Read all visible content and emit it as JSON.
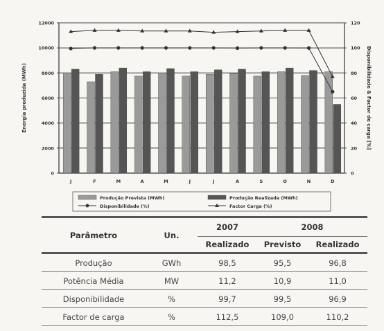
{
  "chart_data": {
    "type": "bar",
    "categories": [
      "J",
      "F",
      "M",
      "A",
      "M",
      "J",
      "J",
      "A",
      "S",
      "O",
      "N",
      "D"
    ],
    "series": [
      {
        "name": "Produção Prevista (MWh)",
        "kind": "bar",
        "axis": "left",
        "color": "#9a9a9a",
        "values": [
          8000,
          7300,
          8100,
          7750,
          8000,
          7750,
          7900,
          7950,
          7750,
          8100,
          7800,
          8100
        ]
      },
      {
        "name": "Produção Realizada (MWh)",
        "kind": "bar",
        "axis": "left",
        "color": "#555555",
        "values": [
          8300,
          7900,
          8400,
          8100,
          8350,
          8100,
          8250,
          8300,
          8100,
          8400,
          8200,
          5500
        ]
      },
      {
        "name": "Disponibilidade (%)",
        "kind": "line",
        "axis": "right",
        "marker": "circle",
        "values": [
          99.5,
          100,
          100,
          100,
          100,
          100,
          100,
          99.8,
          100,
          100,
          99.9,
          65
        ]
      },
      {
        "name": "Factor Carga (%)",
        "kind": "line",
        "axis": "right",
        "marker": "triangle",
        "values": [
          113,
          114,
          114,
          113.5,
          113.5,
          113.5,
          112.5,
          113,
          113.5,
          114,
          114,
          77
        ]
      }
    ],
    "ylabel": "Energia produzida (MWh)",
    "y2label": "Disponibilidade & Factor de carga [%]",
    "ylim": [
      0,
      12000
    ],
    "y2lim": [
      0,
      120
    ],
    "yticks": [
      "0",
      "2000",
      "4000",
      "6000",
      "8000",
      "10000",
      "12000"
    ],
    "y2ticks": [
      "0",
      "20",
      "40",
      "60",
      "80",
      "100",
      "120"
    ],
    "grid": true,
    "legend_position": "bottom"
  },
  "table": {
    "headers": {
      "param": "Parâmetro",
      "unit": "Un.",
      "year1": "2007",
      "year2": "2008",
      "realizado1": "Realizado",
      "previsto": "Previsto",
      "realizado2": "Realizado"
    },
    "rows": [
      {
        "param": "Produção",
        "unit": "GWh",
        "r2007": "98,5",
        "p2008": "95,5",
        "r2008": "96,8"
      },
      {
        "param": "Potência Média",
        "unit": "MW",
        "r2007": "11,2",
        "p2008": "10,9",
        "r2008": "11,0"
      },
      {
        "param": "Disponibilidade",
        "unit": "%",
        "r2007": "99,7",
        "p2008": "99,5",
        "r2008": "96,9"
      },
      {
        "param": "Factor de carga",
        "unit": "%",
        "r2007": "112,5",
        "p2008": "109,0",
        "r2008": "110,2"
      }
    ]
  }
}
